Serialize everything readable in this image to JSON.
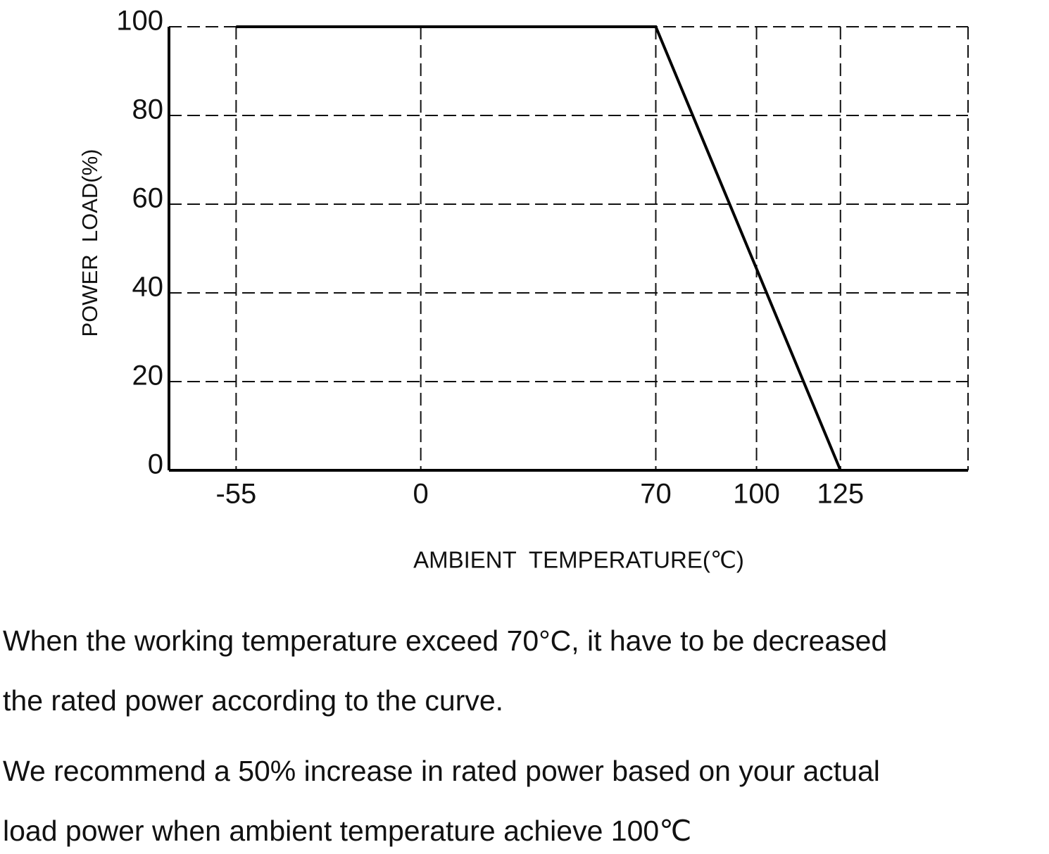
{
  "chart_data": {
    "type": "line",
    "y_label": "POWER  LOAD(%)",
    "x_label": "AMBIENT  TEMPERATURE(℃)",
    "x": [
      -55,
      70,
      125
    ],
    "values": [
      100,
      100,
      0
    ],
    "color": "#000000",
    "xlim": [
      -75,
      163
    ],
    "xticks": [
      -55,
      0,
      70,
      100,
      125
    ],
    "ylim": [
      0,
      100
    ],
    "yticks": [
      0,
      20,
      40,
      60,
      80,
      100
    ],
    "grid": true
  },
  "notes": [
    [
      "When the working temperature exceed 70°C, it have to be decreased",
      "the rated power according to the curve."
    ],
    [
      "We recommend a 50% increase in rated power based on your actual",
      "load power when ambient temperature achieve 100℃"
    ]
  ]
}
